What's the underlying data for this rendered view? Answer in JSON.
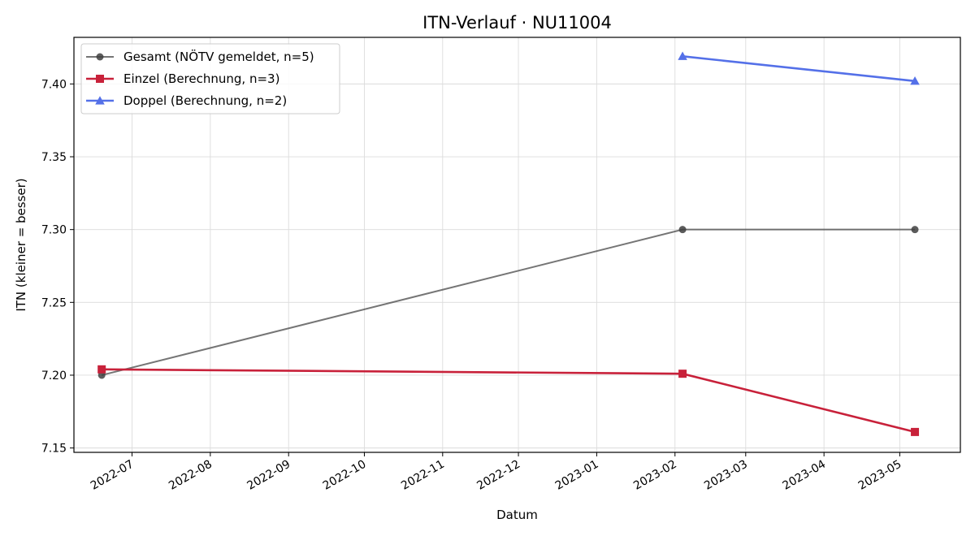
{
  "chart_data": {
    "type": "line",
    "title": "ITN-Verlauf · NU11004",
    "xlabel": "Datum",
    "ylabel": "ITN  (kleiner = besser)",
    "x_type": "date",
    "xlim": [
      "2022-06-08",
      "2023-05-25"
    ],
    "ylim": [
      7.147,
      7.432
    ],
    "yticks": [
      7.15,
      7.2,
      7.25,
      7.3,
      7.35,
      7.4
    ],
    "ytick_labels": [
      "7.15",
      "7.20",
      "7.25",
      "7.30",
      "7.35",
      "7.40"
    ],
    "xticks": [
      "2022-07-01",
      "2022-08-01",
      "2022-09-01",
      "2022-10-01",
      "2022-11-01",
      "2022-12-01",
      "2023-01-01",
      "2023-02-01",
      "2023-03-01",
      "2023-04-01",
      "2023-05-01"
    ],
    "xtick_labels": [
      "2022-07",
      "2022-08",
      "2022-09",
      "2022-10",
      "2022-11",
      "2022-12",
      "2023-01",
      "2023-02",
      "2023-03",
      "2023-04",
      "2023-05"
    ],
    "grid": true,
    "legend_position": "upper-left",
    "series": [
      {
        "name": "Gesamt (NÖTV gemeldet, n=5)",
        "color": "#404040",
        "marker": "circle",
        "x": [
          "2022-06-19",
          "2023-02-04",
          "2023-05-07"
        ],
        "y": [
          7.2,
          7.3,
          7.3
        ]
      },
      {
        "name": "Einzel (Berechnung, n=3)",
        "color": "#c8213a",
        "marker": "square",
        "x": [
          "2022-06-19",
          "2023-02-04",
          "2023-05-07"
        ],
        "y": [
          7.204,
          7.201,
          7.161
        ]
      },
      {
        "name": "Doppel (Berechnung, n=2)",
        "color": "#5470e8",
        "marker": "triangle",
        "x": [
          "2023-02-04",
          "2023-05-07"
        ],
        "y": [
          7.419,
          7.402
        ]
      }
    ]
  }
}
